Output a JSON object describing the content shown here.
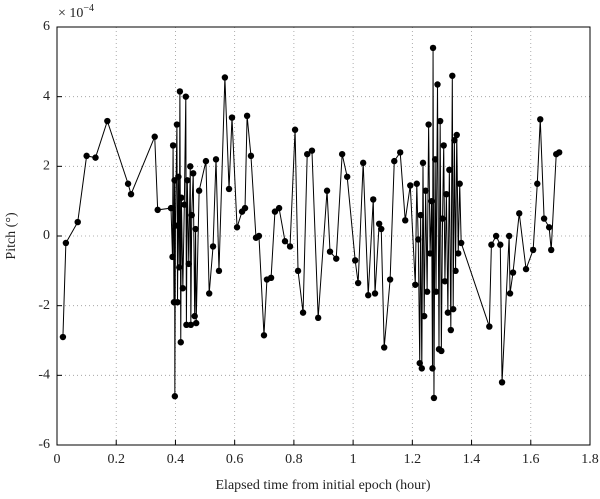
{
  "chart_data": {
    "type": "line",
    "x_label": "Elapsed time from initial epoch (hour)",
    "y_label": "Pitch (°)",
    "y_scale_base": "× 10",
    "y_scale_exponent": "−4",
    "xlim": [
      0,
      1.8
    ],
    "xticks": [
      0,
      0.2,
      0.4,
      0.6,
      0.8,
      1,
      1.2,
      1.4,
      1.6,
      1.8
    ],
    "ylim": [
      -6,
      6
    ],
    "yticks": [
      -6,
      -4,
      -2,
      0,
      2,
      4,
      6
    ],
    "grid": true,
    "series": [
      {
        "color": "#000000",
        "x": [
          0.02,
          0.03,
          0.07,
          0.1,
          0.13,
          0.17,
          0.24,
          0.25,
          0.33,
          0.34,
          0.385,
          0.39,
          0.392,
          0.395,
          0.397,
          0.398,
          0.4,
          0.405,
          0.407,
          0.41,
          0.413,
          0.415,
          0.418,
          0.42,
          0.425,
          0.43,
          0.435,
          0.437,
          0.44,
          0.445,
          0.45,
          0.452,
          0.455,
          0.46,
          0.465,
          0.468,
          0.47,
          0.48,
          0.503,
          0.514,
          0.527,
          0.537,
          0.547,
          0.567,
          0.581,
          0.591,
          0.608,
          0.625,
          0.635,
          0.642,
          0.655,
          0.672,
          0.682,
          0.699,
          0.709,
          0.723,
          0.736,
          0.75,
          0.77,
          0.787,
          0.804,
          0.814,
          0.831,
          0.845,
          0.861,
          0.882,
          0.912,
          0.922,
          0.943,
          0.963,
          0.98,
          1.007,
          1.017,
          1.034,
          1.051,
          1.068,
          1.074,
          1.088,
          1.095,
          1.105,
          1.125,
          1.139,
          1.159,
          1.176,
          1.193,
          1.21,
          1.215,
          1.22,
          1.225,
          1.228,
          1.232,
          1.236,
          1.24,
          1.245,
          1.25,
          1.255,
          1.26,
          1.265,
          1.268,
          1.27,
          1.273,
          1.277,
          1.28,
          1.285,
          1.29,
          1.294,
          1.298,
          1.302,
          1.306,
          1.31,
          1.315,
          1.32,
          1.325,
          1.33,
          1.335,
          1.338,
          1.342,
          1.346,
          1.35,
          1.355,
          1.36,
          1.365,
          1.46,
          1.467,
          1.483,
          1.497,
          1.503,
          1.527,
          1.53,
          1.54,
          1.561,
          1.584,
          1.608,
          1.622,
          1.632,
          1.645,
          1.662,
          1.669,
          1.686,
          1.696
        ],
        "values": [
          -2.9,
          -0.2,
          0.4,
          2.3,
          2.25,
          3.3,
          1.5,
          1.2,
          2.85,
          0.75,
          0.8,
          -0.6,
          2.6,
          -1.9,
          1.6,
          -4.6,
          0.3,
          3.2,
          -1.9,
          1.7,
          -0.9,
          4.15,
          -3.05,
          1.1,
          -1.5,
          0.9,
          4.0,
          -2.55,
          1.6,
          -0.8,
          2.0,
          -2.55,
          0.6,
          1.8,
          -2.3,
          0.2,
          -2.5,
          1.3,
          2.15,
          -1.65,
          -0.3,
          2.2,
          -1.0,
          4.55,
          1.35,
          3.4,
          0.25,
          0.7,
          0.8,
          3.45,
          2.3,
          -0.05,
          0,
          -2.85,
          -1.25,
          -1.2,
          0.7,
          0.8,
          -0.15,
          -0.3,
          3.05,
          -1.0,
          -2.2,
          2.35,
          2.45,
          -2.35,
          1.3,
          -0.45,
          -0.65,
          2.35,
          1.7,
          -0.7,
          -1.35,
          2.1,
          -1.7,
          1.05,
          -1.65,
          0.35,
          0.2,
          -3.2,
          -1.25,
          2.15,
          2.4,
          0.45,
          1.45,
          -1.4,
          1.5,
          -0.1,
          -3.65,
          0.6,
          -3.8,
          2.1,
          -2.3,
          1.3,
          -1.6,
          3.2,
          -0.5,
          1.0,
          -3.8,
          5.4,
          -4.65,
          2.2,
          -1.6,
          4.35,
          -3.25,
          3.3,
          -3.3,
          0.5,
          2.6,
          -1.3,
          1.2,
          -2.2,
          1.9,
          -2.7,
          4.6,
          -2.1,
          2.75,
          -1.0,
          2.9,
          -0.5,
          1.5,
          -0.2,
          -2.6,
          -0.25,
          0,
          -0.25,
          -4.2,
          0,
          -1.65,
          -1.05,
          0.65,
          -0.95,
          -0.4,
          1.5,
          3.35,
          0.5,
          0.25,
          -0.4,
          2.35,
          2.4
        ]
      }
    ]
  }
}
